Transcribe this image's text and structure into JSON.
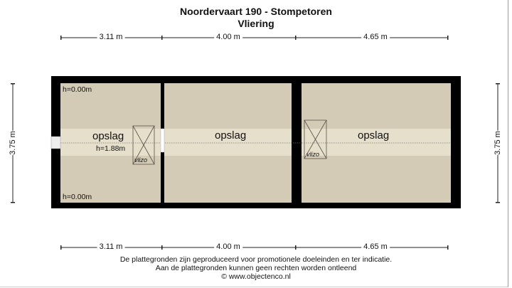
{
  "title": "Noordervaart 190 - Stompetoren",
  "subtitle": "Vliering",
  "dimensions": {
    "top": [
      "3.11 m",
      "4.00 m",
      "4.65 m"
    ],
    "bottom": [
      "3.11 m",
      "4.00 m",
      "4.65 m"
    ],
    "left": "3.75 m",
    "right": "3.75 m"
  },
  "rooms": [
    {
      "label": "opslag",
      "height_label": "h=1.88m",
      "hatch_label": "vlizo"
    },
    {
      "label": "opslag"
    },
    {
      "label": "opslag",
      "hatch_label": "vlizo"
    }
  ],
  "height_marks": [
    "h=0.00m",
    "h=0.00m"
  ],
  "footer": [
    "De plattegronden zijn geproduceerd voor promotionele doeleinden en ter indicatie.",
    "Aan de plattegronden kunnen geen rechten worden ontleend",
    "© www.objectenco.nl"
  ],
  "colors": {
    "wall": "#000000",
    "floor": "#d4cbb6",
    "band": "#e6dfcb"
  }
}
